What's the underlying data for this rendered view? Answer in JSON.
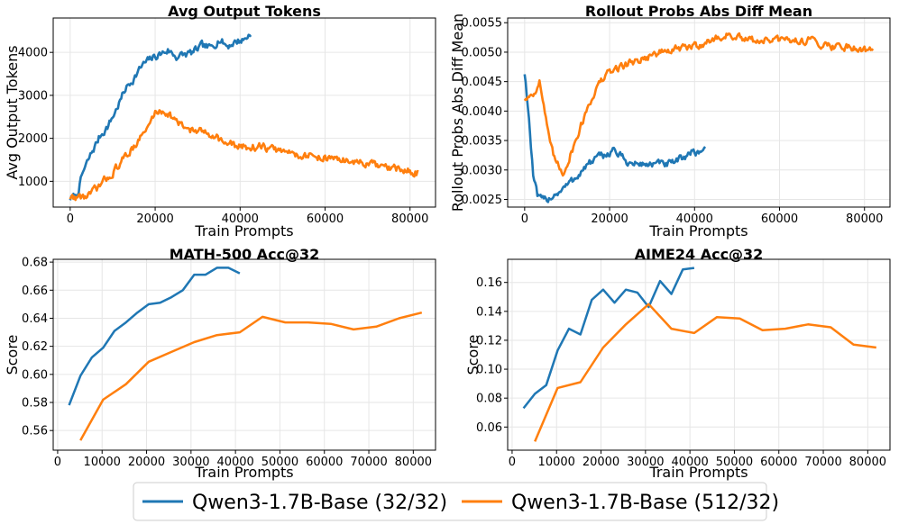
{
  "colors": {
    "blue": "#1f77b4",
    "orange": "#ff7f0e"
  },
  "legend": [
    {
      "label": "Qwen3-1.7B-Base (32/32)",
      "color": "#1f77b4"
    },
    {
      "label": "Qwen3-1.7B-Base (512/32)",
      "color": "#ff7f0e"
    }
  ],
  "chart_data": [
    {
      "type": "line",
      "title": "Avg Output Tokens",
      "xlabel": "Train Prompts",
      "ylabel": "Avg Output Tokens",
      "xlim": [
        -4000,
        86000
      ],
      "ylim": [
        400,
        4800
      ],
      "xticks": [
        0,
        20000,
        40000,
        60000,
        80000
      ],
      "xtick_labels": [
        "0",
        "20000",
        "40000",
        "60000",
        "80000"
      ],
      "yticks": [
        1000,
        2000,
        3000,
        4000
      ],
      "ytick_labels": [
        "1000",
        "2000",
        "3000",
        "4000"
      ],
      "series": [
        {
          "name": "Qwen3-1.7B-Base (32/32)",
          "noisy": true,
          "x": [
            0,
            1500,
            3000,
            5000,
            7000,
            9000,
            11000,
            13000,
            15000,
            17000,
            19000,
            21000,
            23000,
            25000,
            27000,
            29000,
            31000,
            33000,
            35000,
            37000,
            39000,
            41000,
            42500
          ],
          "y": [
            600,
            650,
            1200,
            1650,
            2050,
            2300,
            2700,
            3150,
            3400,
            3700,
            3850,
            3950,
            4050,
            3900,
            3950,
            4000,
            4150,
            4100,
            4300,
            4150,
            4250,
            4300,
            4450
          ]
        },
        {
          "name": "Qwen3-1.7B-Base (512/32)",
          "noisy": true,
          "x": [
            0,
            4000,
            6000,
            8000,
            10000,
            12000,
            14000,
            16000,
            18000,
            20000,
            22000,
            24000,
            26000,
            30000,
            34000,
            36000,
            40000,
            45000,
            50000,
            55000,
            60000,
            65000,
            70000,
            75000,
            80000,
            82000
          ],
          "y": [
            620,
            650,
            800,
            1000,
            1200,
            1450,
            1700,
            1950,
            2200,
            2600,
            2650,
            2500,
            2300,
            2150,
            2100,
            1900,
            1800,
            1800,
            1700,
            1600,
            1550,
            1480,
            1400,
            1300,
            1230,
            1200
          ]
        }
      ]
    },
    {
      "type": "line",
      "title": "Rollout Probs Abs Diff Mean",
      "xlabel": "Train Prompts",
      "ylabel": "Rollout Probs Abs Diff Mean",
      "xlim": [
        -4000,
        86000
      ],
      "ylim": [
        0.00237,
        0.00558
      ],
      "xticks": [
        0,
        20000,
        40000,
        60000,
        80000
      ],
      "xtick_labels": [
        "0",
        "20000",
        "40000",
        "60000",
        "80000"
      ],
      "yticks": [
        0.0025,
        0.003,
        0.0035,
        0.004,
        0.0045,
        0.005,
        0.0055
      ],
      "ytick_labels": [
        "0.0025",
        "0.0030",
        "0.0035",
        "0.0040",
        "0.0045",
        "0.0050",
        "0.0055"
      ],
      "series": [
        {
          "name": "Qwen3-1.7B-Base (32/32)",
          "noisy": true,
          "x": [
            0,
            500,
            1200,
            2000,
            3000,
            4000,
            5000,
            7000,
            9000,
            11000,
            13000,
            15000,
            17000,
            19000,
            21000,
            23000,
            25000,
            27000,
            29000,
            31000,
            33000,
            35000,
            37000,
            39000,
            41000,
            42500
          ],
          "y": [
            0.00465,
            0.0043,
            0.0037,
            0.0029,
            0.00255,
            0.00248,
            0.0025,
            0.00258,
            0.00268,
            0.0028,
            0.00295,
            0.0031,
            0.0032,
            0.00325,
            0.00335,
            0.0032,
            0.0031,
            0.0031,
            0.0031,
            0.0031,
            0.0031,
            0.0031,
            0.0032,
            0.0033,
            0.0033,
            0.0034
          ]
        },
        {
          "name": "Qwen3-1.7B-Base (512/32)",
          "noisy": true,
          "x": [
            0,
            1000,
            2000,
            3500,
            4500,
            6000,
            7500,
            9000,
            11000,
            13000,
            15000,
            17000,
            19000,
            21000,
            24000,
            28000,
            32000,
            36000,
            40000,
            44000,
            48000,
            52000,
            56000,
            60000,
            64000,
            68000,
            72000,
            76000,
            80000,
            82000
          ],
          "y": [
            0.0042,
            0.00425,
            0.0043,
            0.0045,
            0.0041,
            0.0034,
            0.0031,
            0.00295,
            0.0033,
            0.0037,
            0.0041,
            0.0044,
            0.0046,
            0.0047,
            0.0048,
            0.0049,
            0.005,
            0.00505,
            0.0051,
            0.0052,
            0.0053,
            0.0052,
            0.0052,
            0.0052,
            0.0052,
            0.0052,
            0.0051,
            0.0051,
            0.00505,
            0.00505
          ]
        }
      ]
    },
    {
      "type": "line",
      "title": "MATH-500 Acc@32",
      "xlabel": "Train Prompts",
      "ylabel": "Score",
      "xlim": [
        -1000,
        85000
      ],
      "ylim": [
        0.546,
        0.682
      ],
      "xticks": [
        0,
        10000,
        20000,
        30000,
        40000,
        50000,
        60000,
        70000,
        80000
      ],
      "xtick_labels": [
        "0",
        "10000",
        "20000",
        "30000",
        "40000",
        "50000",
        "60000",
        "70000",
        "80000"
      ],
      "yticks": [
        0.56,
        0.58,
        0.6,
        0.62,
        0.64,
        0.66,
        0.68
      ],
      "ytick_labels": [
        "0.56",
        "0.58",
        "0.60",
        "0.62",
        "0.64",
        "0.66",
        "0.68"
      ],
      "series": [
        {
          "name": "Qwen3-1.7B-Base (32/32)",
          "noisy": false,
          "x": [
            2560,
            5120,
            7680,
            10240,
            12800,
            15360,
            17920,
            20480,
            23040,
            25600,
            28160,
            30720,
            33280,
            35840,
            38400,
            40960
          ],
          "y": [
            0.578,
            0.599,
            0.612,
            0.619,
            0.631,
            0.637,
            0.644,
            0.65,
            0.651,
            0.655,
            0.66,
            0.671,
            0.671,
            0.676,
            0.676,
            0.672
          ]
        },
        {
          "name": "Qwen3-1.7B-Base (512/32)",
          "noisy": false,
          "x": [
            5120,
            10240,
            15360,
            20480,
            25600,
            30720,
            35840,
            40960,
            46080,
            51200,
            56320,
            61440,
            66560,
            71680,
            76800,
            81920
          ],
          "y": [
            0.553,
            0.582,
            0.593,
            0.609,
            0.616,
            0.623,
            0.628,
            0.63,
            0.641,
            0.637,
            0.637,
            0.636,
            0.632,
            0.634,
            0.64,
            0.644
          ]
        }
      ]
    },
    {
      "type": "line",
      "title": "AIME24 Acc@32",
      "xlabel": "Train Prompts",
      "ylabel": "Score",
      "xlim": [
        -1000,
        85000
      ],
      "ylim": [
        0.044,
        0.176
      ],
      "xticks": [
        0,
        10000,
        20000,
        30000,
        40000,
        50000,
        60000,
        70000,
        80000
      ],
      "xtick_labels": [
        "0",
        "10000",
        "20000",
        "30000",
        "40000",
        "50000",
        "60000",
        "70000",
        "80000"
      ],
      "yticks": [
        0.06,
        0.08,
        0.1,
        0.12,
        0.14,
        0.16
      ],
      "ytick_labels": [
        "0.06",
        "0.08",
        "0.10",
        "0.12",
        "0.14",
        "0.16"
      ],
      "series": [
        {
          "name": "Qwen3-1.7B-Base (32/32)",
          "noisy": false,
          "x": [
            2560,
            5120,
            7680,
            10240,
            12800,
            15360,
            17920,
            20480,
            23040,
            25600,
            28160,
            30720,
            33280,
            35840,
            38400,
            40960
          ],
          "y": [
            0.073,
            0.083,
            0.089,
            0.113,
            0.128,
            0.124,
            0.148,
            0.155,
            0.146,
            0.155,
            0.153,
            0.143,
            0.161,
            0.152,
            0.169,
            0.17
          ]
        },
        {
          "name": "Qwen3-1.7B-Base (512/32)",
          "noisy": false,
          "x": [
            5120,
            10240,
            15360,
            20480,
            25600,
            30720,
            35840,
            40960,
            46080,
            51200,
            56320,
            61440,
            66560,
            71680,
            76800,
            81920
          ],
          "y": [
            0.05,
            0.087,
            0.091,
            0.115,
            0.131,
            0.145,
            0.128,
            0.125,
            0.136,
            0.135,
            0.127,
            0.128,
            0.131,
            0.129,
            0.117,
            0.115
          ]
        }
      ]
    }
  ]
}
